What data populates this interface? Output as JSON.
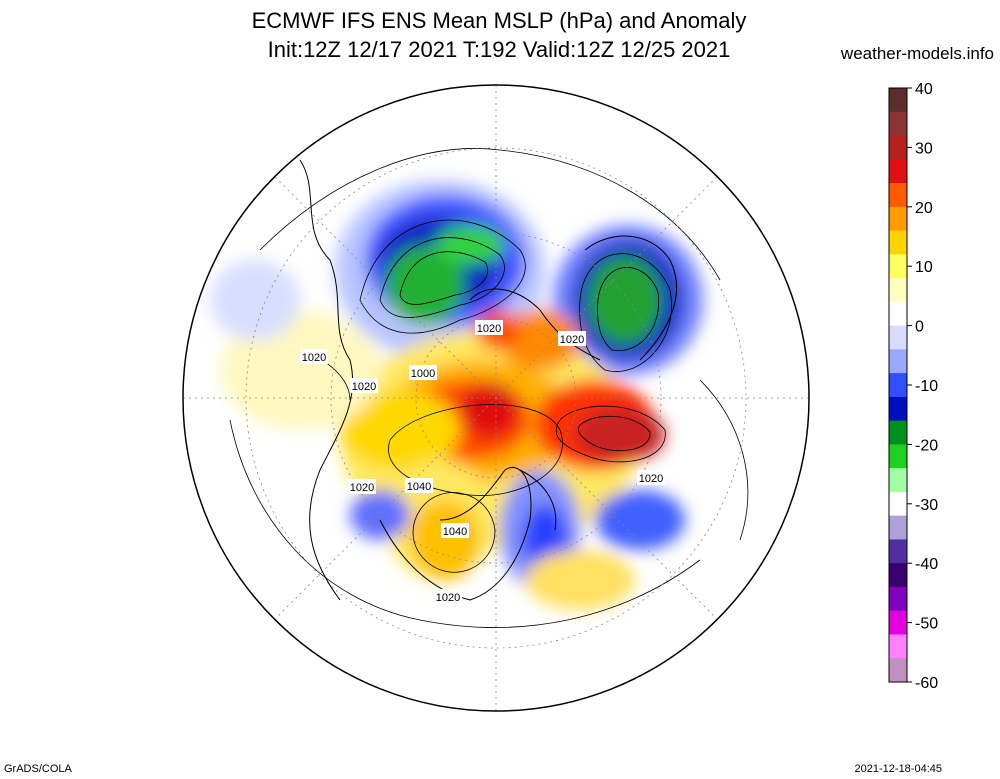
{
  "header": {
    "title_line1": "ECMWF IFS ENS Mean MSLP (hPa) and Anomaly",
    "title_line2": "Init:12Z 12/17 2021  T:192 Valid:12Z 12/25 2021",
    "site": "weather-models.info"
  },
  "footer": {
    "left": "GrADS/COLA",
    "right": "2021-12-18-04:45"
  },
  "map": {
    "projection": "north polar stereographic",
    "contour_labels": [
      {
        "text": "1020",
        "id": "l-1020-a"
      },
      {
        "text": "1020",
        "id": "l-1020-b"
      },
      {
        "text": "1020",
        "id": "l-1020-c"
      },
      {
        "text": "1020",
        "id": "l-1020-d"
      },
      {
        "text": "1000",
        "id": "l-1000"
      },
      {
        "text": "1020",
        "id": "l-1020-e"
      },
      {
        "text": "1020",
        "id": "l-1020-f"
      },
      {
        "text": "1040",
        "id": "l-1040-a"
      },
      {
        "text": "1040",
        "id": "l-1040-b"
      },
      {
        "text": "1020",
        "id": "l-1020-g"
      }
    ]
  },
  "colorbar": {
    "ticks": [
      "40",
      "30",
      "20",
      "10",
      "0",
      "-10",
      "-20",
      "-30",
      "-40",
      "-50",
      "-60"
    ],
    "colors": [
      "#5a2e2e",
      "#8c3434",
      "#b52020",
      "#e01010",
      "#ff5a00",
      "#ff9a00",
      "#ffd200",
      "#ffff60",
      "#ffffc0",
      "#ffffff",
      "#d8dcff",
      "#9aa8ff",
      "#3050ff",
      "#0010c0",
      "#009020",
      "#20d020",
      "#a0ffa0",
      "#ffffff",
      "#b0a0d8",
      "#5030a0",
      "#3a0070",
      "#8000c0",
      "#e000e0",
      "#ff80ff",
      "#c090c0"
    ]
  }
}
